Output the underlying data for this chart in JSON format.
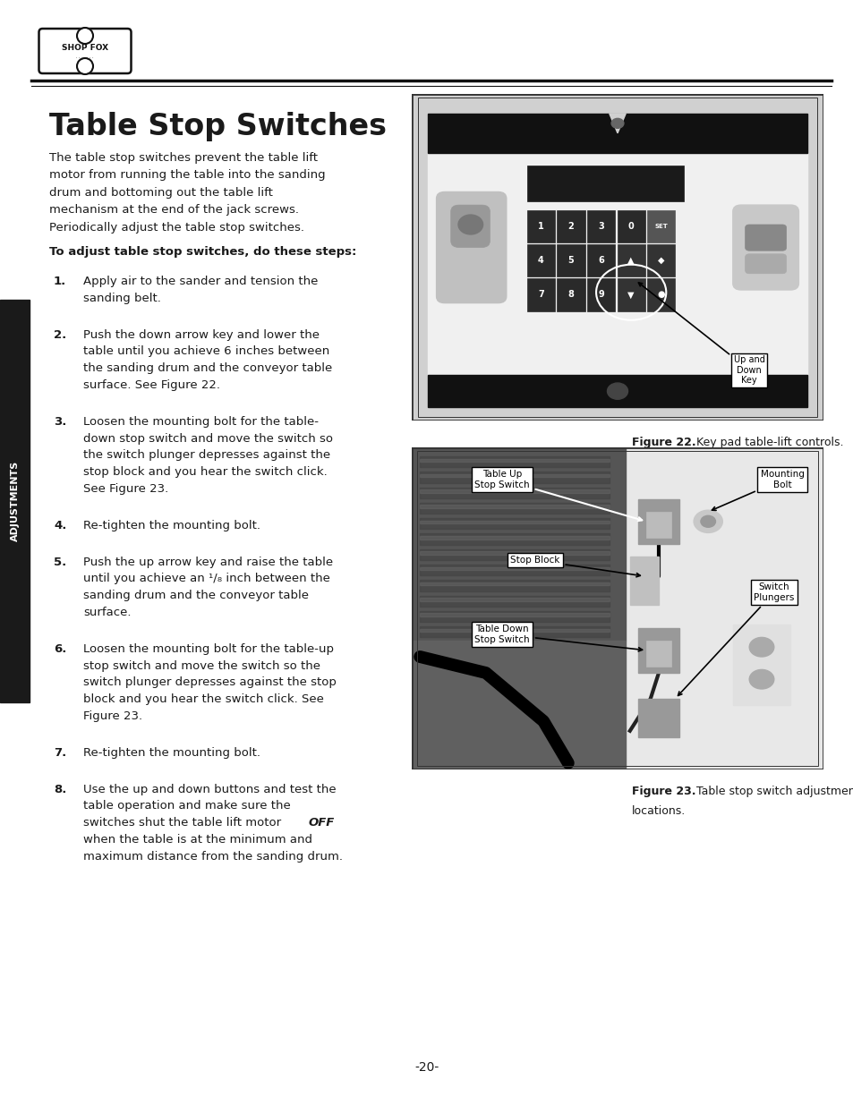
{
  "page_width": 9.54,
  "page_height": 12.35,
  "bg_color": "#ffffff",
  "title": "Table Stop Switches",
  "intro_text": "The table stop switches prevent the table lift\nmotor from running the table into the sanding\ndrum and bottoming out the table lift\nmechanism at the end of the jack screws.\nPeriodically adjust the table stop switches.",
  "bold_header": "To adjust table stop switches, do these steps:",
  "steps": [
    "Apply air to the sander and tension the\nsanding belt.",
    "Push the down arrow key and lower the\ntable until you achieve 6 inches between\nthe sanding drum and the conveyor table\nsurface. See Figure 22.",
    "Loosen the mounting bolt for the table-\ndown stop switch and move the switch so\nthe switch plunger depresses against the\nstop block and you hear the switch click.\nSee Figure 23.",
    "Re-tighten the mounting bolt.",
    "Push the up arrow key and raise the table\nuntil you achieve an ¹/₈ inch between the\nsanding drum and the conveyor table\nsurface.",
    "Loosen the mounting bolt for the table-up\nstop switch and move the switch so the\nswitch plunger depresses against the stop\nblock and you hear the switch click. See\nFigure 23.",
    "Re-tighten the mounting bolt.",
    "Use the up and down buttons and test the\ntable operation and make sure the\nswitches shut the table lift motor OFF\nwhen the table is at the minimum and\nmaximum distance from the sanding drum."
  ],
  "fig22_caption_bold": "Figure 22.",
  "fig22_caption_normal": " Key pad table-lift controls.",
  "fig23_caption_bold": "Figure 23.",
  "fig23_caption_normal": " Table stop switch adjustment\nlocations.",
  "sidebar_text": "ADJUSTMENTS",
  "sidebar_bg": "#1a1a1a",
  "sidebar_text_color": "#ffffff",
  "text_color": "#1a1a1a",
  "caption_color": "#1a1a1a",
  "title_fontsize": 24,
  "body_fontsize": 9.5,
  "step_fontsize": 9.5,
  "caption_fontsize": 9,
  "page_number": "-20-"
}
